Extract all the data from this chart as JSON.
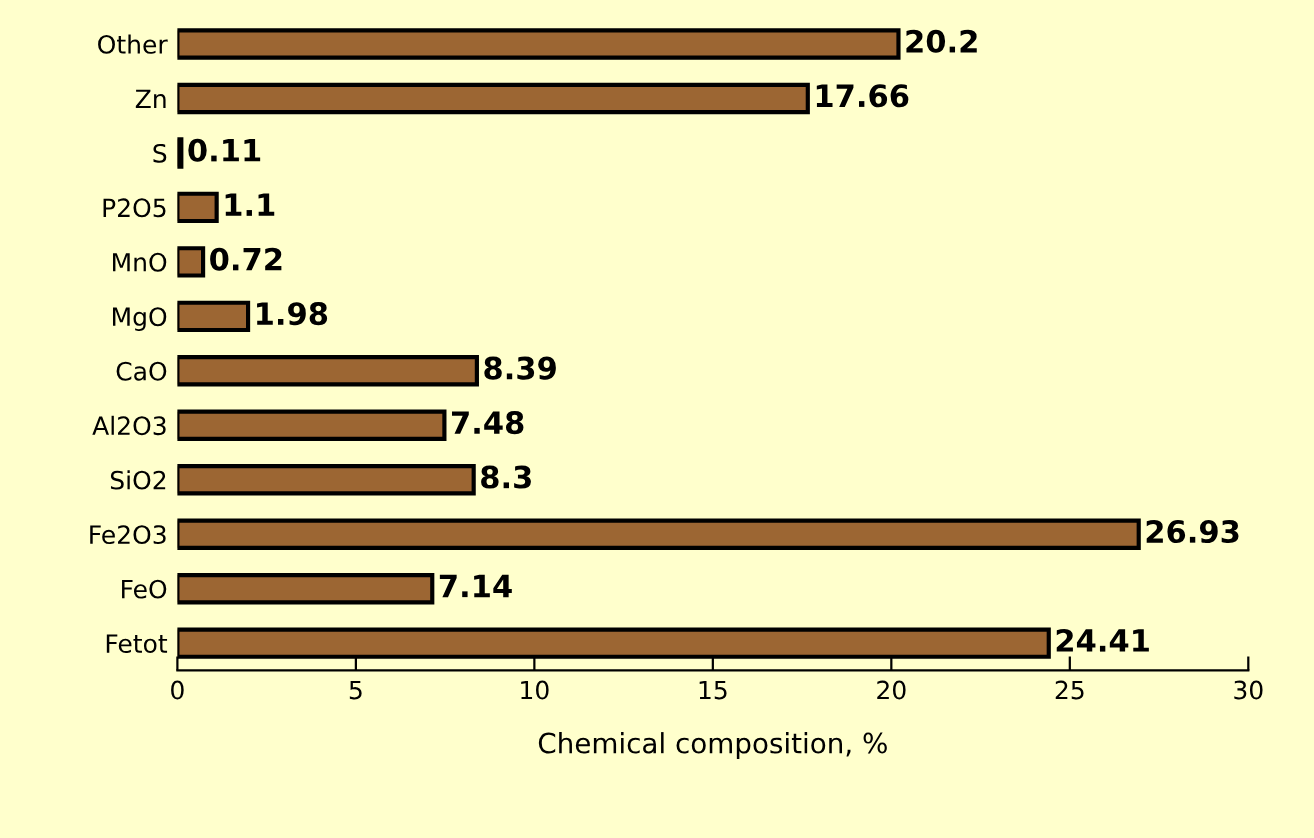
{
  "chart_data": {
    "type": "bar",
    "orientation": "horizontal",
    "xlabel": "Chemical composition, %",
    "categories": [
      "Other",
      "Zn",
      "S",
      "P2O5",
      "MnO",
      "MgO",
      "CaO",
      "Al2O3",
      "SiO2",
      "Fe2O3",
      "FeO",
      "Fetot"
    ],
    "values": [
      20.2,
      17.66,
      0.11,
      1.1,
      0.72,
      1.98,
      8.39,
      7.48,
      8.3,
      26.93,
      7.14,
      24.41
    ],
    "color": "#9c6633",
    "xlim": [
      0,
      30
    ],
    "xticks": [
      0,
      5,
      10,
      15,
      20,
      25,
      30
    ],
    "data_labels": true,
    "grid": false,
    "legend": false
  }
}
